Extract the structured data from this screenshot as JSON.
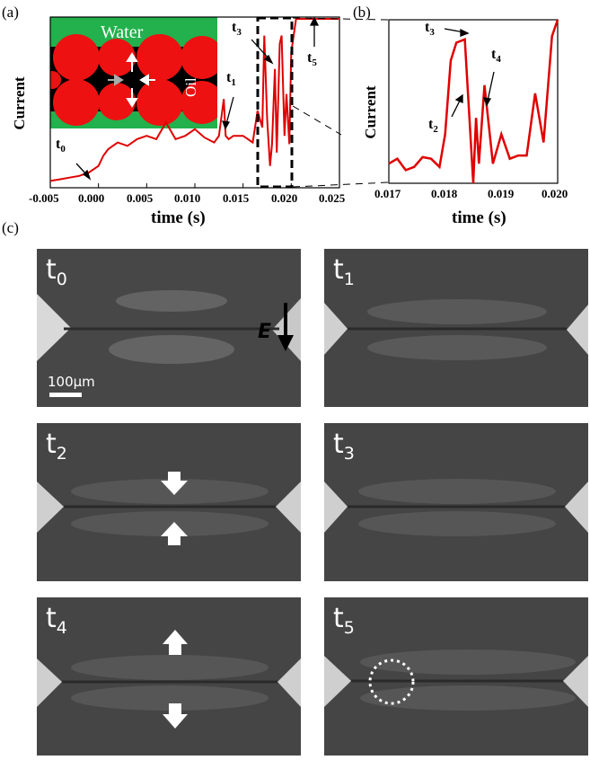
{
  "panels": {
    "a": "(a)",
    "b": "(b)",
    "c": "(c)"
  },
  "chart_data": [
    {
      "type": "line",
      "panel": "(a)",
      "xlabel": "time (s)",
      "ylabel": "Current",
      "xlim": [
        -0.005,
        0.025
      ],
      "xticks": [
        "-0.005",
        "0.000",
        "0.005",
        "0.010",
        "0.015",
        "0.020",
        "0.025"
      ],
      "series": [
        {
          "color": "#e00000",
          "x": [
            -0.005,
            -0.004,
            -0.003,
            -0.002,
            -0.001,
            0.0,
            0.0005,
            0.001,
            0.002,
            0.003,
            0.004,
            0.005,
            0.006,
            0.007,
            0.008,
            0.009,
            0.01,
            0.011,
            0.012,
            0.0125,
            0.013,
            0.0132,
            0.0135,
            0.014,
            0.015,
            0.016,
            0.0165,
            0.017,
            0.0172,
            0.0175,
            0.0178,
            0.018,
            0.0183,
            0.0185,
            0.0188,
            0.019,
            0.0193,
            0.0195,
            0.0198,
            0.02,
            0.0205,
            0.022,
            0.025
          ],
          "y": [
            0.03,
            0.04,
            0.05,
            0.06,
            0.08,
            0.12,
            0.18,
            0.22,
            0.26,
            0.24,
            0.28,
            0.3,
            0.28,
            0.38,
            0.28,
            0.3,
            0.34,
            0.29,
            0.26,
            0.3,
            0.52,
            0.3,
            0.28,
            0.3,
            0.3,
            0.26,
            0.45,
            0.35,
            0.9,
            0.4,
            0.12,
            0.25,
            0.7,
            0.2,
            0.85,
            0.9,
            0.3,
            0.55,
            0.25,
            0.8,
            1.0,
            1.0,
            1.0
          ]
        }
      ],
      "annotations": [
        "t0",
        "t1",
        "t3",
        "t5"
      ],
      "inset": {
        "water": "Water",
        "oil": "Oil",
        "colors": {
          "water": "#22b14c",
          "oil": "#ee1111",
          "film": "#000000",
          "arrow": "#ffffff"
        }
      }
    },
    {
      "type": "line",
      "panel": "(b)",
      "xlabel": "time (s)",
      "ylabel": "Current",
      "xlim": [
        0.017,
        0.02
      ],
      "xticks": [
        "0.017",
        "0.018",
        "0.019",
        "0.020"
      ],
      "series": [
        {
          "color": "#e00000",
          "x": [
            0.017,
            0.01715,
            0.0173,
            0.01745,
            0.0176,
            0.01775,
            0.0179,
            0.018,
            0.0181,
            0.0182,
            0.01835,
            0.0185,
            0.01855,
            0.0186,
            0.0187,
            0.01885,
            0.019,
            0.01915,
            0.0193,
            0.01945,
            0.0196,
            0.01975,
            0.0199,
            0.02
          ],
          "y": [
            0.12,
            0.15,
            0.08,
            0.1,
            0.16,
            0.15,
            0.1,
            0.3,
            0.75,
            0.86,
            0.88,
            0.0,
            0.4,
            0.12,
            0.6,
            0.12,
            0.3,
            0.15,
            0.17,
            0.17,
            0.55,
            0.25,
            0.9,
            1.0
          ]
        }
      ],
      "annotations": [
        "t3",
        "t4",
        "t2"
      ]
    }
  ],
  "frames": [
    {
      "sym": "t",
      "sub": "0",
      "extra": "E",
      "scale": "100μm"
    },
    {
      "sym": "t",
      "sub": "1"
    },
    {
      "sym": "t",
      "sub": "2"
    },
    {
      "sym": "t",
      "sub": "3"
    },
    {
      "sym": "t",
      "sub": "4"
    },
    {
      "sym": "t",
      "sub": "5"
    }
  ]
}
